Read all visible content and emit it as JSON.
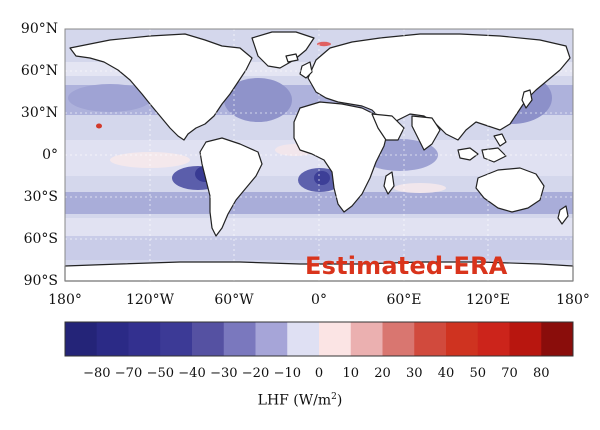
{
  "map": {
    "overlay_label": "Estimated-ERA",
    "lat_labels": [
      "90°N",
      "60°N",
      "30°N",
      "0°",
      "30°S",
      "60°S",
      "90°S"
    ],
    "lon_labels": [
      "180°",
      "120°W",
      "60°W",
      "0°",
      "60°E",
      "120°E",
      "180°"
    ],
    "colors": {
      "ocean_base": "#d4d7ec",
      "ocean_light": "#e5e6f3",
      "ocean_mid": "#a8acd8",
      "ocean_dark": "#7b7fc0",
      "ocean_deep": "#383a93",
      "land": "#ffffff",
      "coast": "#222222",
      "positive_patch": "#f7e4e4",
      "hotspot": "#d23a2c"
    }
  },
  "colorbar": {
    "title_text": "LHF (W/m",
    "title_exp": "2",
    "title_close": ")",
    "tick_labels": [
      "−80",
      "−70",
      "−50",
      "−40",
      "−30",
      "−20",
      "−10",
      "0",
      "10",
      "20",
      "30",
      "40",
      "50",
      "70",
      "80"
    ],
    "colors": [
      "#242478",
      "#2b2a86",
      "#33308f",
      "#3c3a96",
      "#5551a2",
      "#7a78be",
      "#a6a5d8",
      "#dfe0f3",
      "#fbe4e4",
      "#ebb0b0",
      "#d97670",
      "#d14a3d",
      "#cf3320",
      "#cc241b",
      "#b8160f",
      "#8a0d0b"
    ]
  }
}
